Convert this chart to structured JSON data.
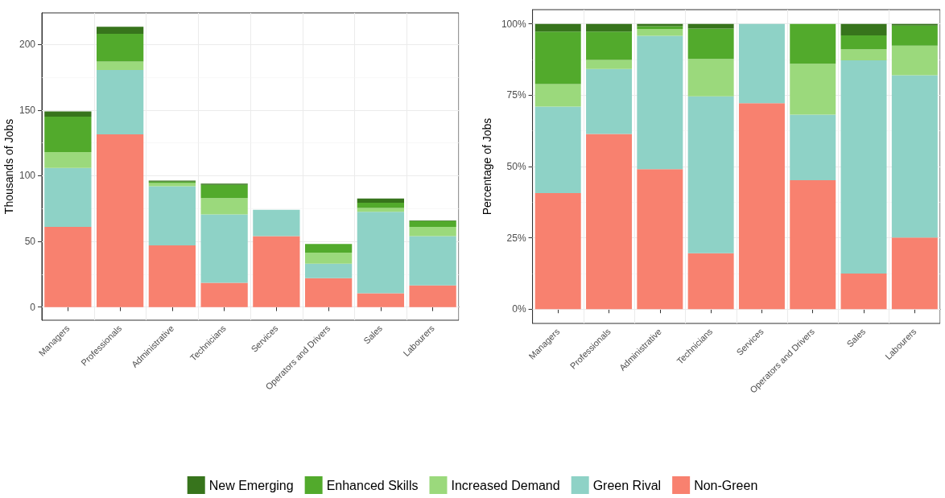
{
  "chart_data": [
    {
      "type": "bar",
      "stacked": true,
      "ylabel": "Thousands of Jobs",
      "categories": [
        "Managers",
        "Professionals",
        "Administrative",
        "Technicians",
        "Services",
        "Operators and Drivers",
        "Sales",
        "Labourers"
      ],
      "ylim": [
        -10,
        224
      ],
      "yticks": [
        0,
        50,
        100,
        150,
        200
      ],
      "grid": true,
      "legend": "bottom",
      "series": [
        {
          "name": "Non-Green",
          "color": "#f8816f",
          "values": [
            61,
            131.5,
            47,
            18.5,
            54,
            22,
            10.5,
            16.5
          ]
        },
        {
          "name": "Green Rival",
          "color": "#8ed2c6",
          "values": [
            45,
            49,
            45,
            52,
            20,
            11,
            62,
            37.5
          ]
        },
        {
          "name": "Increased Demand",
          "color": "#9bd97c",
          "values": [
            12,
            6.5,
            2.5,
            12.5,
            0,
            8.5,
            3,
            7
          ]
        },
        {
          "name": "Enhanced Skills",
          "color": "#52aa2c",
          "values": [
            27,
            21,
            1,
            10,
            0,
            6.5,
            4,
            4.5
          ]
        },
        {
          "name": "New Emerging",
          "color": "#37741c",
          "values": [
            4,
            5.5,
            0.8,
            1,
            0,
            0,
            3.2,
            0.5
          ]
        }
      ]
    },
    {
      "type": "bar",
      "stacked": true,
      "ylabel": "Percentage of Jobs",
      "categories": [
        "Managers",
        "Professionals",
        "Administrative",
        "Technicians",
        "Services",
        "Operators and Drivers",
        "Sales",
        "Labourers"
      ],
      "ylim": [
        -5,
        105
      ],
      "yticks": [
        {
          "value": 0,
          "label": "0%"
        },
        {
          "value": 25,
          "label": "25%"
        },
        {
          "value": 50,
          "label": "50%"
        },
        {
          "value": 75,
          "label": "75%"
        },
        {
          "value": 100,
          "label": "100%"
        }
      ],
      "grid": true,
      "series": [
        {
          "color": "#f8816f",
          "values": [
            40.7,
            61.4,
            49.1,
            19.6,
            72.2,
            45.2,
            12.5,
            25.1
          ]
        },
        {
          "color": "#8ed2c6",
          "values": [
            30.3,
            22.8,
            46.7,
            55,
            27.8,
            23,
            74.7,
            56.9
          ]
        },
        {
          "color": "#9bd97c",
          "values": [
            7.9,
            3.2,
            2.4,
            13.1,
            0,
            17.8,
            3.9,
            10.4
          ]
        },
        {
          "color": "#52aa2c",
          "values": [
            18.4,
            9.9,
            1,
            10.7,
            0,
            14,
            4.9,
            7
          ]
        },
        {
          "color": "#37741c",
          "values": [
            2.7,
            2.7,
            0.8,
            1.6,
            0,
            0,
            4,
            0.6
          ]
        }
      ]
    }
  ]
}
